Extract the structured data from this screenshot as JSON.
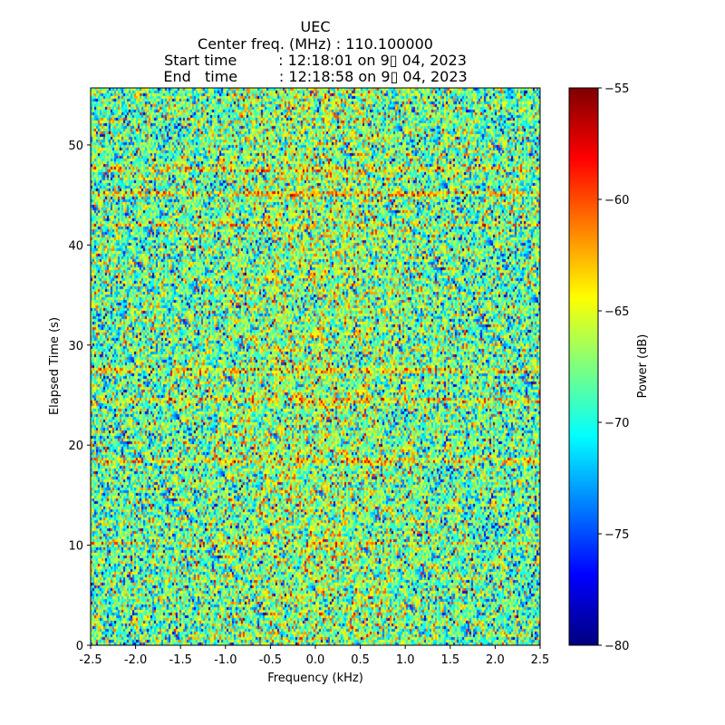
{
  "chart_data": {
    "type": "heatmap",
    "title_lines": [
      "UEC",
      "Center freq. (MHz) : 110.100000",
      "Start time         : 12:18:01 on 9▯ 04, 2023",
      "End   time         : 12:18:58 on 9▯ 04, 2023"
    ],
    "xlabel": "Frequency (kHz)",
    "ylabel": "Elapsed Time (s)",
    "xlim": [
      -2.5,
      2.5
    ],
    "ylim": [
      0,
      55.7
    ],
    "xticks": [
      -2.5,
      -2.0,
      -1.5,
      -1.0,
      -0.5,
      0.0,
      0.5,
      1.0,
      1.5,
      2.0,
      2.5
    ],
    "xtick_labels": [
      "-2.5",
      "-2.0",
      "-1.5",
      "-1.0",
      "-0.5",
      "0.0",
      "0.5",
      "1.0",
      "1.5",
      "2.0",
      "2.5"
    ],
    "yticks": [
      0,
      10,
      20,
      30,
      40,
      50
    ],
    "ytick_labels": [
      "0",
      "10",
      "20",
      "30",
      "40",
      "50"
    ],
    "colorbar": {
      "label": "Power (dB)",
      "colormap": "jet",
      "range": [
        -80,
        -55
      ],
      "ticks": [
        -80,
        -75,
        -70,
        -65,
        -60,
        -55
      ],
      "tick_labels": [
        "−80",
        "−75",
        "−70",
        "−65",
        "−60",
        "−55"
      ]
    },
    "noise_mean_db": -68.5,
    "noise_std_db": 4,
    "bright_bands_s": [
      10.2,
      18.5,
      24.5,
      27.5,
      42,
      45,
      47.5
    ]
  }
}
